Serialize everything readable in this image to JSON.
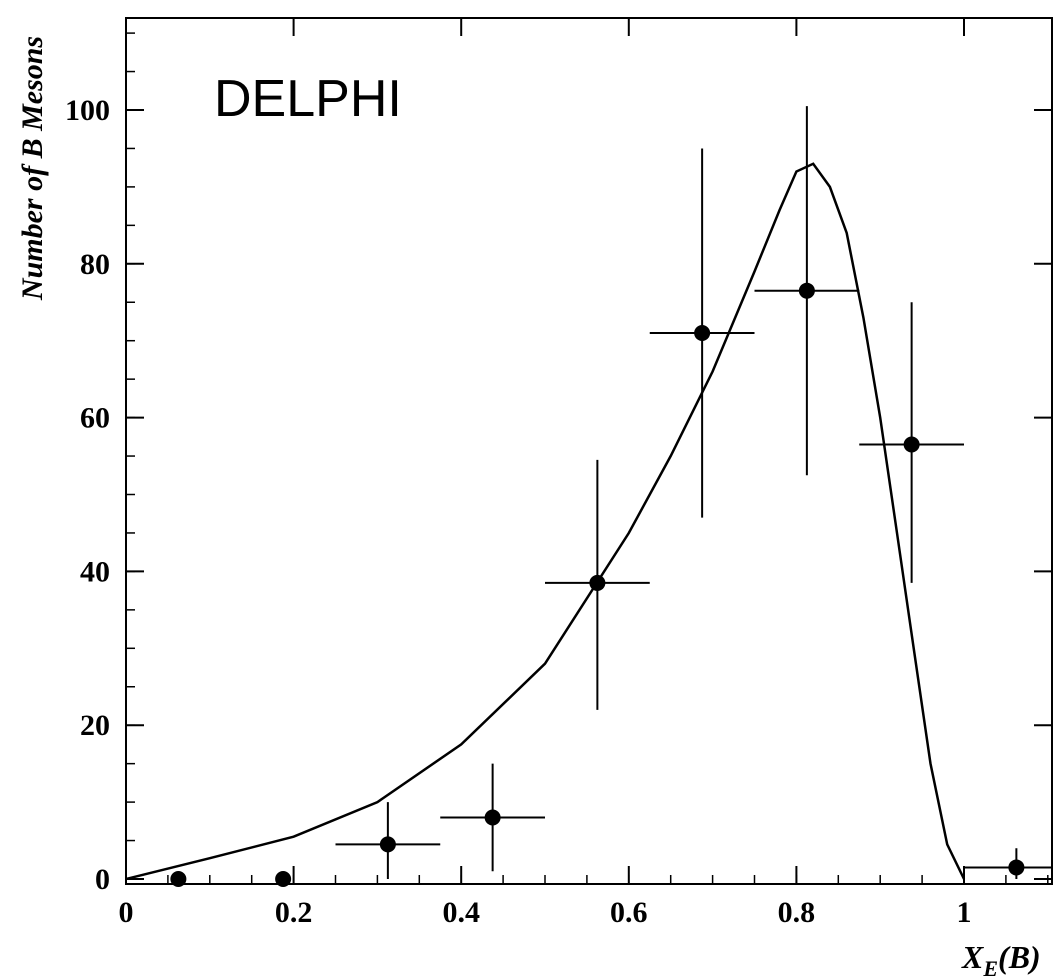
{
  "chart_data": {
    "type": "scatter",
    "annotation": "DELPHI",
    "ylabel": "Number of B Mesons",
    "xlabel_main": "X",
    "xlabel_sub": "E",
    "xlabel_suffix": "(B)",
    "xlim": [
      0,
      1.1
    ],
    "ylim": [
      0,
      112
    ],
    "x_ticks": [
      0,
      0.2,
      0.4,
      0.6,
      0.8,
      1
    ],
    "x_tick_labels": [
      "0",
      "0.2",
      "0.4",
      "0.6",
      "0.8",
      "1"
    ],
    "y_ticks": [
      0,
      20,
      40,
      60,
      80,
      100
    ],
    "y_tick_labels": [
      "0",
      "20",
      "40",
      "60",
      "80",
      "100"
    ],
    "grid": false,
    "series": [
      {
        "kind": "points_with_errors",
        "points": [
          {
            "x": 0.0625,
            "y": 0.0,
            "xerr": 0.0,
            "yerr_low": 0.0,
            "yerr_high": 0.0
          },
          {
            "x": 0.1875,
            "y": 0.0,
            "xerr": 0.0,
            "yerr_low": 0.0,
            "yerr_high": 0.0
          },
          {
            "x": 0.3125,
            "y": 4.5,
            "xerr": 0.0625,
            "yerr_low": 4.5,
            "yerr_high": 5.5
          },
          {
            "x": 0.4375,
            "y": 8.0,
            "xerr": 0.0625,
            "yerr_low": 7.0,
            "yerr_high": 7.0
          },
          {
            "x": 0.5625,
            "y": 38.5,
            "xerr": 0.0625,
            "yerr_low": 16.5,
            "yerr_high": 16.0
          },
          {
            "x": 0.6875,
            "y": 71.0,
            "xerr": 0.0625,
            "yerr_low": 24.0,
            "yerr_high": 24.0
          },
          {
            "x": 0.8125,
            "y": 76.5,
            "xerr": 0.0625,
            "yerr_low": 24.0,
            "yerr_high": 24.0
          },
          {
            "x": 0.9375,
            "y": 56.5,
            "xerr": 0.0625,
            "yerr_low": 18.0,
            "yerr_high": 18.5
          },
          {
            "x": 1.0625,
            "y": 1.5,
            "xerr": 0.0625,
            "yerr_low": 1.5,
            "yerr_high": 2.5
          }
        ]
      },
      {
        "kind": "curve",
        "points": [
          [
            0.0,
            0.0
          ],
          [
            0.1,
            2.7
          ],
          [
            0.2,
            5.5
          ],
          [
            0.3,
            10.0
          ],
          [
            0.4,
            17.5
          ],
          [
            0.5,
            28.0
          ],
          [
            0.6,
            45.0
          ],
          [
            0.65,
            55.0
          ],
          [
            0.7,
            66.0
          ],
          [
            0.75,
            79.0
          ],
          [
            0.78,
            87.0
          ],
          [
            0.8,
            92.0
          ],
          [
            0.82,
            93.0
          ],
          [
            0.84,
            90.0
          ],
          [
            0.86,
            84.0
          ],
          [
            0.88,
            73.0
          ],
          [
            0.9,
            60.0
          ],
          [
            0.92,
            45.0
          ],
          [
            0.94,
            30.0
          ],
          [
            0.96,
            15.0
          ],
          [
            0.98,
            4.5
          ],
          [
            1.0,
            0.0
          ]
        ]
      }
    ]
  }
}
